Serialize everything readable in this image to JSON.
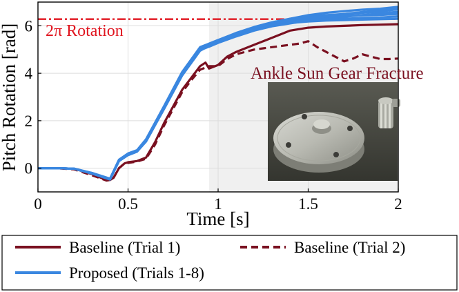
{
  "chart_data": {
    "type": "line",
    "title": "",
    "xlabel": "Time [s]",
    "ylabel": "Pitch Rotation [rad]",
    "xlim": [
      0,
      2
    ],
    "ylim": [
      -1,
      7
    ],
    "xticks": [
      0,
      0.5,
      1,
      1.5,
      2
    ],
    "xtick_labels": [
      "0",
      "0.5",
      "1",
      "1.5",
      "2"
    ],
    "yticks": [
      0,
      2,
      4,
      6
    ],
    "ytick_labels": [
      "0",
      "2",
      "4",
      "6"
    ],
    "grid": true,
    "shaded_region": {
      "x_start": 0.95,
      "x_end": 2
    },
    "reference_line": {
      "y": 6.283,
      "label": "2π Rotation",
      "color": "#e0141e",
      "style": "dashdot"
    },
    "annotation": {
      "text": "Ankle Sun Gear Fracture",
      "color": "#7a1020"
    },
    "photo": {
      "description_name": "gear-fracture-photo"
    },
    "legend": [
      {
        "label": "Baseline (Trial 1)",
        "color": "#7a1020",
        "style": "solid"
      },
      {
        "label": "Baseline (Trial 2)",
        "color": "#7a1020",
        "style": "dashed"
      },
      {
        "label": "Proposed (Trials 1-8)",
        "color": "#3a87e0",
        "style": "solid"
      }
    ],
    "series": [
      {
        "name": "Baseline (Trial 1)",
        "color": "#7a1020",
        "style": "solid",
        "width": 3.2,
        "x": [
          0,
          0.1,
          0.2,
          0.3,
          0.38,
          0.4,
          0.42,
          0.45,
          0.48,
          0.5,
          0.55,
          0.6,
          0.65,
          0.7,
          0.75,
          0.8,
          0.85,
          0.9,
          0.93,
          0.95,
          1.0,
          1.05,
          1.1,
          1.2,
          1.3,
          1.4,
          1.5,
          1.6,
          1.7,
          1.8,
          1.9,
          2.0
        ],
        "y": [
          0,
          0,
          -0.02,
          -0.25,
          -0.5,
          -0.5,
          -0.4,
          0.0,
          0.2,
          0.25,
          0.3,
          0.45,
          1.1,
          1.9,
          2.6,
          3.3,
          3.8,
          4.3,
          4.45,
          4.2,
          4.35,
          4.7,
          4.9,
          5.2,
          5.5,
          5.8,
          5.92,
          5.97,
          6.0,
          6.03,
          6.05,
          6.07
        ]
      },
      {
        "name": "Baseline (Trial 2)",
        "color": "#7a1020",
        "style": "dashed",
        "width": 3.2,
        "x": [
          0,
          0.1,
          0.2,
          0.3,
          0.38,
          0.4,
          0.42,
          0.45,
          0.48,
          0.5,
          0.55,
          0.6,
          0.65,
          0.7,
          0.75,
          0.8,
          0.85,
          0.9,
          0.95,
          1.0,
          1.05,
          1.1,
          1.15,
          1.2,
          1.25,
          1.3,
          1.35,
          1.4,
          1.45,
          1.5,
          1.55,
          1.6,
          1.65,
          1.7,
          1.75,
          1.8,
          1.85,
          1.9,
          1.95,
          2.0
        ],
        "y": [
          0,
          0,
          -0.05,
          -0.3,
          -0.52,
          -0.5,
          -0.4,
          0.0,
          0.2,
          0.22,
          0.28,
          0.4,
          1.0,
          1.8,
          2.5,
          3.2,
          3.7,
          4.15,
          4.3,
          4.3,
          4.6,
          4.8,
          4.9,
          5.0,
          5.05,
          5.1,
          5.15,
          5.2,
          5.25,
          5.35,
          5.1,
          4.9,
          4.7,
          4.5,
          4.62,
          4.8,
          4.7,
          4.6,
          4.6,
          4.62
        ]
      },
      {
        "name": "Proposed (Trial 1)",
        "color": "#3a87e0",
        "style": "solid",
        "width": 3.2,
        "x": [
          0,
          0.1,
          0.2,
          0.3,
          0.4,
          0.45,
          0.5,
          0.55,
          0.6,
          0.7,
          0.8,
          0.9,
          0.95,
          1.0,
          1.1,
          1.2,
          1.3,
          1.4,
          1.5,
          1.6,
          1.7,
          1.8,
          1.9,
          2.0
        ],
        "y": [
          0,
          0,
          -0.02,
          -0.2,
          -0.45,
          0.35,
          0.6,
          0.75,
          1.2,
          2.6,
          4.0,
          5.05,
          5.25,
          5.4,
          5.7,
          5.95,
          6.15,
          6.3,
          6.4,
          6.45,
          6.5,
          6.55,
          6.6,
          6.7
        ]
      },
      {
        "name": "Proposed (Trial 2)",
        "color": "#3a87e0",
        "style": "solid",
        "width": 3.2,
        "x": [
          0,
          0.1,
          0.2,
          0.3,
          0.4,
          0.45,
          0.5,
          0.55,
          0.6,
          0.7,
          0.8,
          0.9,
          0.95,
          1.0,
          1.1,
          1.2,
          1.3,
          1.4,
          1.5,
          1.6,
          1.7,
          1.8,
          1.9,
          2.0
        ],
        "y": [
          0,
          0,
          -0.02,
          -0.22,
          -0.47,
          0.3,
          0.55,
          0.7,
          1.15,
          2.5,
          3.9,
          4.95,
          5.15,
          5.3,
          5.6,
          5.85,
          6.05,
          6.2,
          6.3,
          6.38,
          6.42,
          6.45,
          6.5,
          6.55
        ]
      },
      {
        "name": "Proposed (Trial 3)",
        "color": "#3a87e0",
        "style": "solid",
        "width": 3.2,
        "x": [
          0,
          0.1,
          0.2,
          0.3,
          0.4,
          0.45,
          0.5,
          0.55,
          0.6,
          0.7,
          0.8,
          0.9,
          0.95,
          1.0,
          1.1,
          1.2,
          1.3,
          1.4,
          1.5,
          1.6,
          1.7,
          1.8,
          1.9,
          2.0
        ],
        "y": [
          0,
          0,
          -0.02,
          -0.22,
          -0.46,
          0.32,
          0.58,
          0.72,
          1.18,
          2.55,
          3.95,
          5.0,
          5.2,
          5.35,
          5.65,
          5.9,
          6.1,
          6.3,
          6.45,
          6.55,
          6.62,
          6.68,
          6.72,
          6.8
        ]
      },
      {
        "name": "Proposed (Trial 4)",
        "color": "#3a87e0",
        "style": "solid",
        "width": 3.2,
        "x": [
          0,
          0.1,
          0.2,
          0.3,
          0.4,
          0.45,
          0.5,
          0.55,
          0.6,
          0.7,
          0.8,
          0.9,
          0.95,
          1.0,
          1.1,
          1.2,
          1.3,
          1.4,
          1.5,
          1.6,
          1.7,
          1.8,
          1.9,
          2.0
        ],
        "y": [
          0,
          0,
          -0.02,
          -0.2,
          -0.44,
          0.36,
          0.62,
          0.76,
          1.22,
          2.62,
          4.05,
          5.1,
          5.25,
          5.4,
          5.65,
          5.9,
          6.05,
          6.15,
          6.2,
          6.25,
          6.3,
          6.33,
          6.35,
          6.4
        ]
      },
      {
        "name": "Proposed (Trial 5)",
        "color": "#3a87e0",
        "style": "solid",
        "width": 3.2,
        "x": [
          0,
          0.1,
          0.2,
          0.3,
          0.4,
          0.45,
          0.5,
          0.55,
          0.6,
          0.7,
          0.8,
          0.9,
          0.95,
          1.0,
          1.1,
          1.2,
          1.3,
          1.4,
          1.5,
          1.6,
          1.7,
          1.8,
          1.9,
          2.0
        ],
        "y": [
          0,
          0,
          -0.02,
          -0.21,
          -0.45,
          0.33,
          0.57,
          0.73,
          1.17,
          2.56,
          3.98,
          5.02,
          5.2,
          5.33,
          5.62,
          5.86,
          6.02,
          6.12,
          6.18,
          6.22,
          6.24,
          6.26,
          6.28,
          6.3
        ]
      },
      {
        "name": "Proposed (Trial 6)",
        "color": "#3a87e0",
        "style": "solid",
        "width": 3.2,
        "x": [
          0,
          0.1,
          0.2,
          0.3,
          0.4,
          0.45,
          0.5,
          0.55,
          0.6,
          0.7,
          0.8,
          0.9,
          0.95,
          1.0,
          1.1,
          1.2,
          1.3,
          1.4,
          1.5,
          1.6,
          1.7,
          1.8,
          1.9,
          2.0
        ],
        "y": [
          0,
          0,
          -0.02,
          -0.23,
          -0.48,
          0.3,
          0.55,
          0.7,
          1.12,
          2.5,
          3.92,
          4.98,
          5.12,
          5.28,
          5.55,
          5.8,
          5.98,
          6.1,
          6.22,
          6.3,
          6.38,
          6.45,
          6.52,
          6.6
        ]
      },
      {
        "name": "Proposed (Trial 7)",
        "color": "#3a87e0",
        "style": "solid",
        "width": 3.2,
        "x": [
          0,
          0.1,
          0.2,
          0.3,
          0.4,
          0.45,
          0.5,
          0.55,
          0.6,
          0.7,
          0.8,
          0.9,
          0.95,
          1.0,
          1.1,
          1.2,
          1.3,
          1.4,
          1.5,
          1.6,
          1.7,
          1.8,
          1.9,
          2.0
        ],
        "y": [
          0,
          0,
          -0.02,
          -0.21,
          -0.46,
          0.34,
          0.6,
          0.74,
          1.2,
          2.58,
          4.0,
          5.05,
          5.22,
          5.38,
          5.68,
          5.92,
          6.1,
          6.25,
          6.35,
          6.4,
          6.42,
          6.44,
          6.46,
          6.5
        ]
      },
      {
        "name": "Proposed (Trial 8)",
        "color": "#3a87e0",
        "style": "solid",
        "width": 3.2,
        "x": [
          0,
          0.1,
          0.2,
          0.3,
          0.4,
          0.45,
          0.5,
          0.55,
          0.6,
          0.7,
          0.8,
          0.9,
          0.95,
          1.0,
          1.1,
          1.2,
          1.3,
          1.4,
          1.5,
          1.6,
          1.7,
          1.8,
          1.9,
          2.0
        ],
        "y": [
          0,
          0,
          -0.02,
          -0.22,
          -0.47,
          0.31,
          0.56,
          0.71,
          1.14,
          2.52,
          3.94,
          5.0,
          5.18,
          5.32,
          5.6,
          5.83,
          6.0,
          6.12,
          6.28,
          6.4,
          6.5,
          6.58,
          6.65,
          6.75
        ]
      }
    ]
  }
}
